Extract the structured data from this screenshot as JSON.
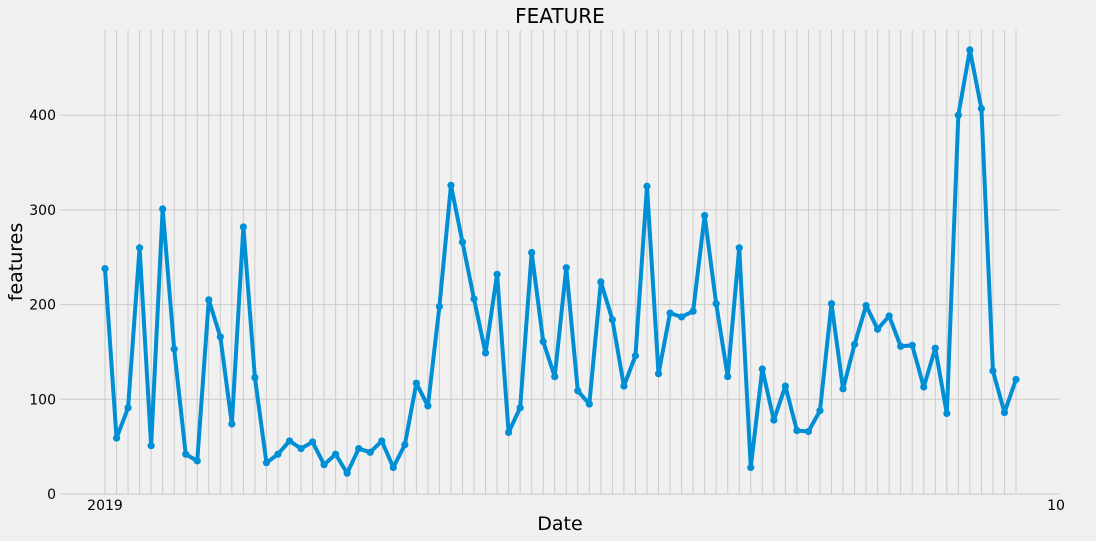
{
  "chart_data": {
    "type": "line",
    "title": "FEATURE",
    "xlabel": "Date",
    "ylabel": "features",
    "ylim": [
      0,
      490
    ],
    "yticks": [
      0,
      100,
      200,
      300,
      400
    ],
    "grid": true,
    "legend": "none",
    "series_color": "#008fd5",
    "x_tick_first": "2019",
    "x_tick_last": "10",
    "values": [
      238,
      59,
      91,
      260,
      51,
      301,
      153,
      42,
      35,
      205,
      166,
      74,
      282,
      123,
      33,
      42,
      56,
      48,
      55,
      31,
      42,
      22,
      48,
      44,
      56,
      28,
      52,
      117,
      93,
      198,
      326,
      266,
      206,
      149,
      232,
      65,
      91,
      255,
      161,
      124,
      239,
      109,
      95,
      224,
      184,
      114,
      146,
      325,
      127,
      191,
      187,
      193,
      294,
      201,
      124,
      260,
      28,
      132,
      78,
      114,
      67,
      66,
      88,
      201,
      111,
      158,
      199,
      174,
      188,
      156,
      157,
      113,
      154,
      85,
      400,
      469,
      407,
      130,
      86,
      121
    ]
  }
}
